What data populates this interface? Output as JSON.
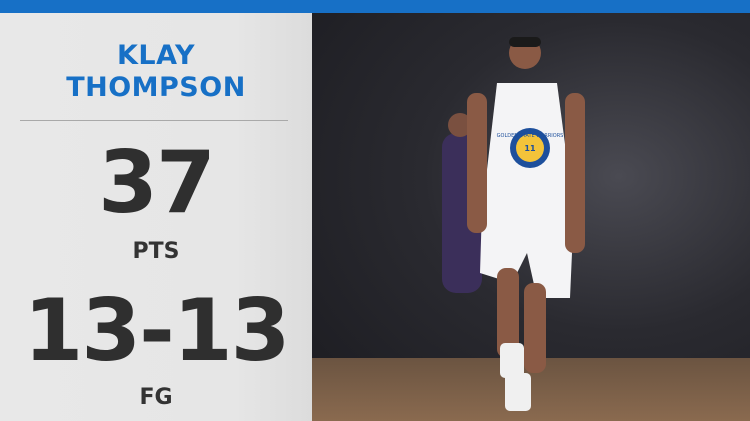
{
  "player": {
    "first_name": "KLAY",
    "last_name": "THOMPSON"
  },
  "stats": {
    "points": {
      "value": "37",
      "label": "PTS"
    },
    "field_goals": {
      "value": "13-13",
      "label": "FG"
    }
  },
  "jersey": {
    "team_text": "GOLDEN STATE WARRIORS",
    "number": "11"
  },
  "colors": {
    "accent": "#1770c6",
    "panel": "#e8e8e8",
    "stat_text": "#2f2f2f"
  }
}
